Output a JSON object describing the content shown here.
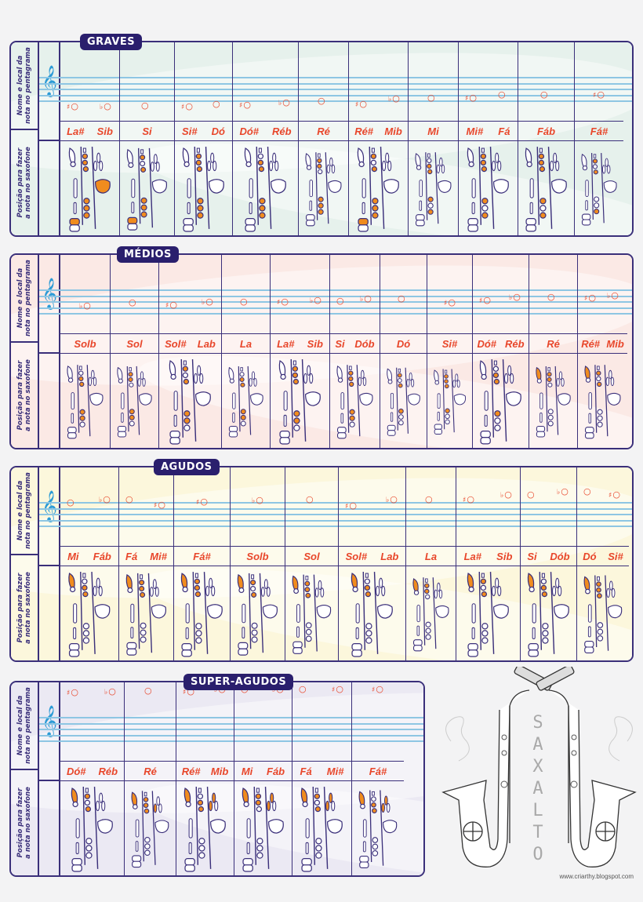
{
  "side_labels": {
    "top": "Nome e local da\nnota no pentagrama",
    "bottom": "Posição para fazer\na nota no saxofone"
  },
  "clef_icon": "treble-clef-icon",
  "colors": {
    "frame": "#3a2f7a",
    "badge": "#2a1f6d",
    "note_text": "#e8462a",
    "pressed_key": "#f08c1e",
    "staff": "#8ec6e3",
    "clef": "#2b9bd6",
    "graves_bg": "#e6f1ec",
    "medios_bg": "#fbe9e5",
    "agudos_bg": "#fcf7dc",
    "super_bg": "#ebe9f3"
  },
  "sections": [
    {
      "title": "GRAVES",
      "columns": [
        {
          "names": [
            "La#",
            "Sib"
          ],
          "notes": [
            "#o",
            "♭o"
          ]
        },
        {
          "names": [
            "Si"
          ],
          "notes": [
            "o"
          ]
        },
        {
          "names": [
            "Si#",
            "Dó"
          ],
          "notes": [
            "#o",
            "o"
          ]
        },
        {
          "names": [
            "Dó#",
            "Réb"
          ],
          "notes": [
            "#o",
            "♭o"
          ]
        },
        {
          "names": [
            "Ré"
          ],
          "notes": [
            "o"
          ]
        },
        {
          "names": [
            "Ré#",
            "Mib"
          ],
          "notes": [
            "#o",
            "♭o"
          ]
        },
        {
          "names": [
            "Mi"
          ],
          "notes": [
            "o"
          ]
        },
        {
          "names": [
            "Mi#",
            "Fá"
          ],
          "notes": [
            "#o",
            "o"
          ]
        },
        {
          "names": [
            "Fáb"
          ],
          "notes": [
            "o"
          ]
        },
        {
          "names": [
            "Fá#"
          ],
          "notes": [
            "#o"
          ]
        }
      ]
    },
    {
      "title": "MÉDIOS",
      "columns": [
        {
          "names": [
            "Solb"
          ],
          "notes": [
            "♭o"
          ]
        },
        {
          "names": [
            "Sol"
          ],
          "notes": [
            "o"
          ]
        },
        {
          "names": [
            "Sol#",
            "Lab"
          ],
          "notes": [
            "#o",
            "♭o"
          ]
        },
        {
          "names": [
            "La"
          ],
          "notes": [
            "o"
          ]
        },
        {
          "names": [
            "La#",
            "Sib"
          ],
          "notes": [
            "#o",
            "♭o"
          ]
        },
        {
          "names": [
            "Si",
            "Dób"
          ],
          "notes": [
            "o",
            "♭o"
          ]
        },
        {
          "names": [
            "Dó"
          ],
          "notes": [
            "o"
          ]
        },
        {
          "names": [
            "Si#"
          ],
          "notes": [
            "#o"
          ]
        },
        {
          "names": [
            "Dó#",
            "Réb"
          ],
          "notes": [
            "#o",
            "♭o"
          ]
        },
        {
          "names": [
            "Ré"
          ],
          "notes": [
            "o"
          ]
        },
        {
          "names": [
            "Ré#",
            "Mib"
          ],
          "notes": [
            "#o",
            "♭o"
          ]
        }
      ]
    },
    {
      "title": "AGUDOS",
      "columns": [
        {
          "names": [
            "Mi",
            "Fáb"
          ],
          "notes": [
            "o",
            "♭o"
          ]
        },
        {
          "names": [
            "Fá",
            "Mi#"
          ],
          "notes": [
            "o",
            "#o"
          ]
        },
        {
          "names": [
            "Fá#"
          ],
          "notes": [
            "#o"
          ]
        },
        {
          "names": [
            "Solb"
          ],
          "notes": [
            "♭o"
          ]
        },
        {
          "names": [
            "Sol"
          ],
          "notes": [
            "o"
          ]
        },
        {
          "names": [
            "Sol#",
            "Lab"
          ],
          "notes": [
            "#o",
            "♭o"
          ]
        },
        {
          "names": [
            "La"
          ],
          "notes": [
            "o"
          ]
        },
        {
          "names": [
            "La#",
            "Sib"
          ],
          "notes": [
            "#o",
            "♭o"
          ]
        },
        {
          "names": [
            "Si",
            "Dób"
          ],
          "notes": [
            "o",
            "♭o"
          ]
        },
        {
          "names": [
            "Dó",
            "Si#"
          ],
          "notes": [
            "o",
            "#o"
          ]
        }
      ]
    },
    {
      "title": "SUPER-AGUDOS",
      "columns": [
        {
          "names": [
            "Dó#",
            "Réb"
          ],
          "notes": [
            "#o",
            "♭o"
          ]
        },
        {
          "names": [
            "Ré"
          ],
          "notes": [
            "o"
          ]
        },
        {
          "names": [
            "Ré#",
            "Mib"
          ],
          "notes": [
            "#o",
            "♭o"
          ]
        },
        {
          "names": [
            "Mi",
            "Fáb"
          ],
          "notes": [
            "o",
            "♭o"
          ]
        },
        {
          "names": [
            "Fá",
            "Mi#"
          ],
          "notes": [
            "o",
            "#o"
          ]
        },
        {
          "names": [
            "Fá#"
          ],
          "notes": [
            "#o"
          ]
        }
      ]
    }
  ],
  "illustration": {
    "label": "SAX ALTO",
    "credit": "www.criarthy.blogspot.com"
  }
}
